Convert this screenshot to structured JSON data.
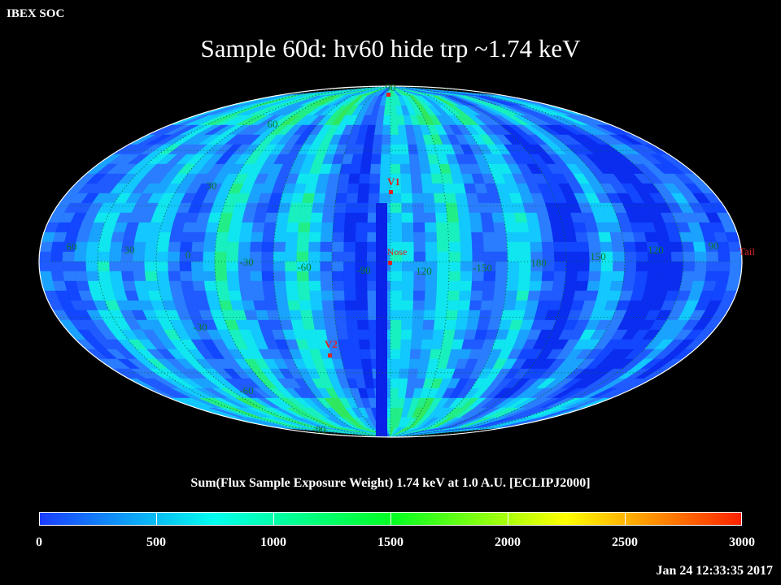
{
  "header": {
    "org": "IBEX SOC",
    "title": "Sample 60d: hv60 hide trp ~1.74 keV"
  },
  "map": {
    "projection": "mollweide",
    "lat_labels": [
      "90",
      "60",
      "30",
      "-30",
      "-60",
      "-90"
    ],
    "lon_labels": [
      "60",
      "30",
      "0",
      "-30",
      "-60",
      "-90",
      "120",
      "-150",
      "180",
      "150",
      "120",
      "90"
    ],
    "markers": [
      {
        "id": "V1",
        "label": "V1"
      },
      {
        "id": "Nose",
        "label": "Nose"
      },
      {
        "id": "V2",
        "label": "V2"
      },
      {
        "id": "Tail",
        "label": "Tail"
      }
    ],
    "marker_color": "#dd2222",
    "grid_label_color": "#0a7a2a"
  },
  "colorbar": {
    "title": "Sum(Flux Sample Exposure Weight)  1.74 keV at 1.0 A.U. [ECLIPJ2000]",
    "min": 0,
    "max": 3000,
    "tick_labels": [
      "0",
      "500",
      "1000",
      "1500",
      "2000",
      "2500",
      "3000"
    ],
    "colors": [
      "#1b3dff",
      "#00ffee",
      "#00ff22",
      "#ffff00",
      "#ff2200"
    ]
  },
  "footer": {
    "timestamp": "Jan 24 12:33:35 2017"
  }
}
